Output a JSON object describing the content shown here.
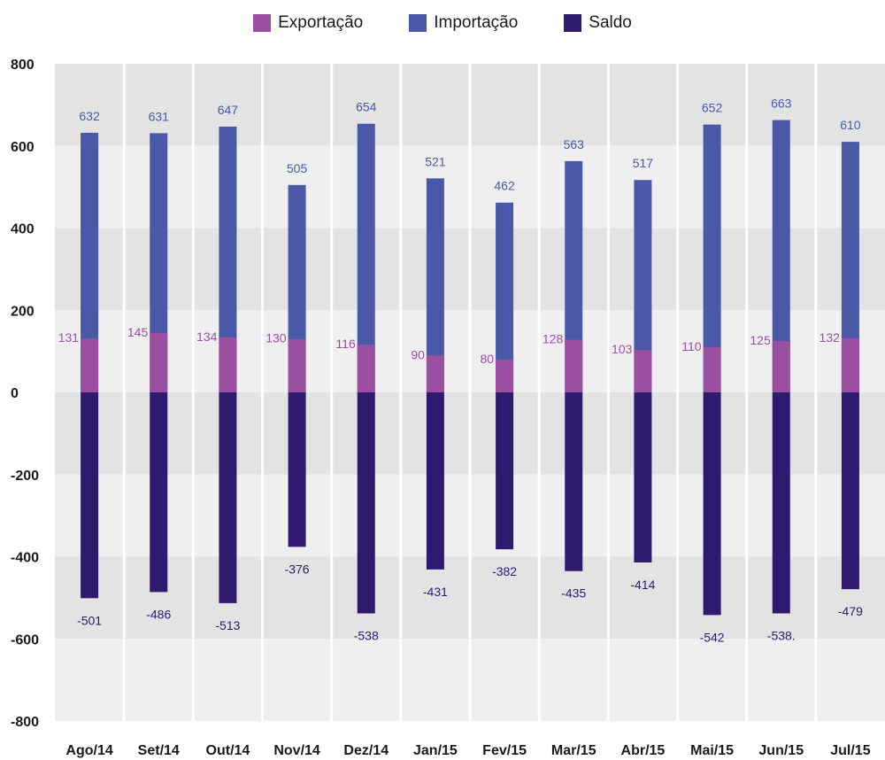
{
  "chart_data": {
    "type": "bar",
    "title": "",
    "xlabel": "",
    "ylabel": "",
    "ylim": [
      -800,
      800
    ],
    "yticks": [
      800,
      600,
      400,
      200,
      0,
      -200,
      -400,
      -600,
      -800
    ],
    "ytick_labels": [
      "800",
      "600",
      "400",
      "200",
      "0",
      "-200",
      "-400",
      "-600",
      "-800"
    ],
    "grid": true,
    "legend": "top-center",
    "categories": [
      "Ago/14",
      "Set/14",
      "Out/14",
      "Nov/14",
      "Dez/14",
      "Jan/15",
      "Fev/15",
      "Mar/15",
      "Abr/15",
      "Mai/15",
      "Jun/15",
      "Jul/15"
    ],
    "series": [
      {
        "name": "Exportação",
        "color": "#9b4fa0",
        "values": [
          131,
          145,
          134,
          130,
          116,
          90,
          80,
          128,
          103,
          110,
          125,
          132
        ],
        "labels": [
          "131",
          "145",
          "134",
          "130",
          "116",
          "90",
          "80",
          "128",
          "103",
          "110",
          "125",
          "132"
        ]
      },
      {
        "name": "Importação",
        "color": "#4a58a8",
        "values": [
          632,
          631,
          647,
          505,
          654,
          521,
          462,
          563,
          517,
          652,
          663,
          610
        ],
        "labels": [
          "632",
          "631",
          "647",
          "505",
          "654",
          "521",
          "462",
          "563",
          "517",
          "652",
          "663",
          "610"
        ]
      },
      {
        "name": "Saldo",
        "color": "#2e1a6e",
        "values": [
          -501,
          -486,
          -513,
          -376,
          -538,
          -431,
          -382,
          -435,
          -414,
          -542,
          -538,
          -479
        ],
        "labels": [
          "-501",
          "-486",
          "-513",
          "-376",
          "-538",
          "-431",
          "-382",
          "-435",
          "-414",
          "-542",
          "-538.",
          "-479"
        ]
      }
    ]
  }
}
